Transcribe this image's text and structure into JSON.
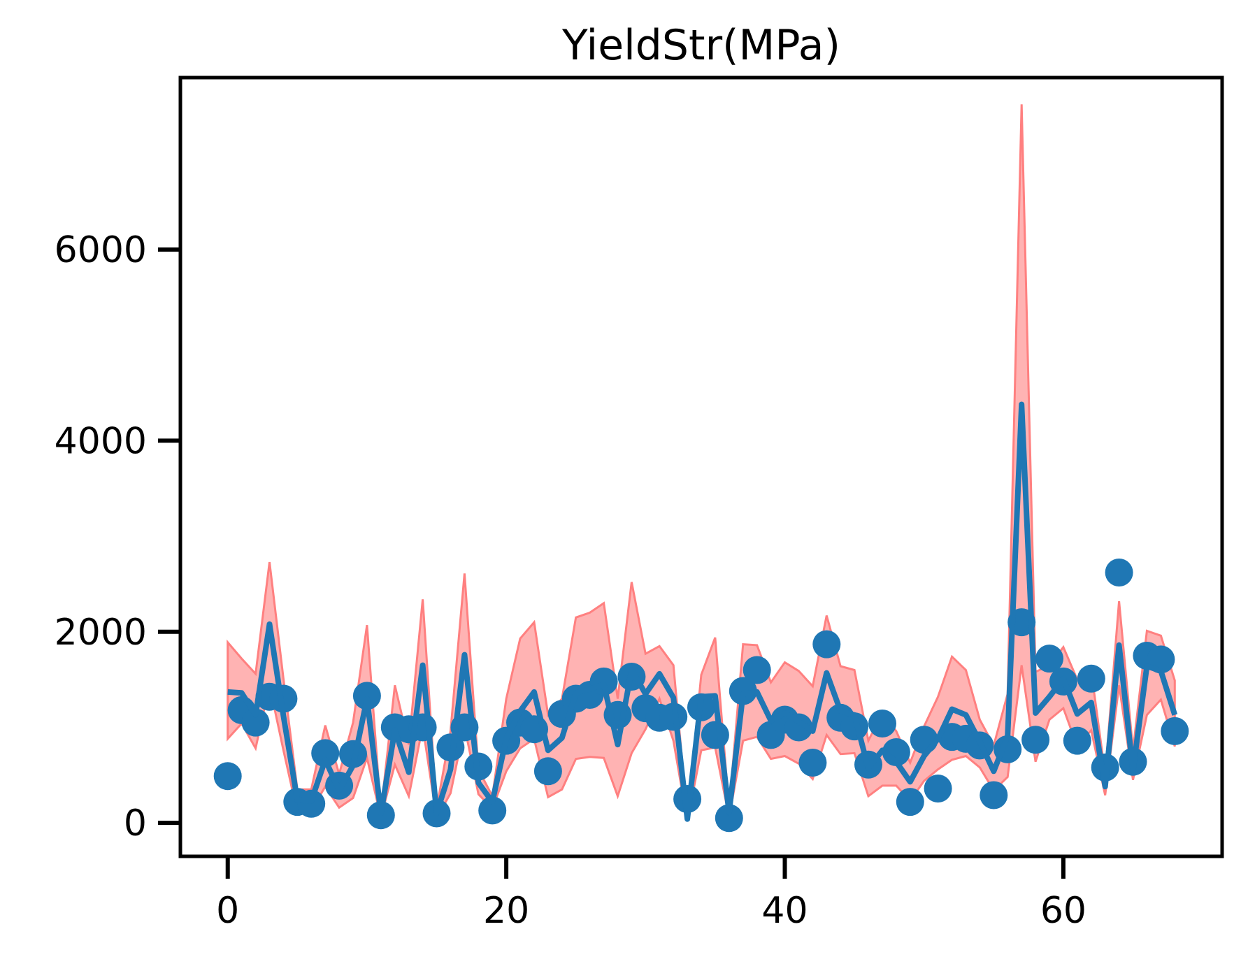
{
  "chart_data": {
    "type": "line",
    "title": "YieldStr(MPa)",
    "xlabel": "",
    "ylabel": "",
    "xlim": [
      -3.4,
      71.4
    ],
    "ylim": [
      -350,
      7800
    ],
    "x_ticks": [
      0,
      20,
      40,
      60
    ],
    "y_ticks": [
      0,
      2000,
      4000,
      6000
    ],
    "grid": false,
    "colors": {
      "points": "#1f77b4",
      "line": "#1f77b4",
      "band": "#ff8080"
    },
    "series": [
      {
        "kind": "scatter",
        "x": [
          0,
          1,
          2,
          3,
          4,
          5,
          6,
          7,
          8,
          9,
          10,
          11,
          12,
          13,
          14,
          15,
          16,
          17,
          18,
          19,
          20,
          21,
          22,
          23,
          24,
          25,
          26,
          27,
          28,
          29,
          30,
          31,
          32,
          33,
          34,
          35,
          36,
          37,
          38,
          39,
          40,
          41,
          42,
          43,
          44,
          45,
          46,
          47,
          48,
          49,
          50,
          51,
          52,
          53,
          54,
          55,
          56,
          57,
          58,
          59,
          60,
          61,
          62,
          63,
          64,
          65,
          66,
          67,
          68
        ],
        "values": [
          490,
          1180,
          1050,
          1320,
          1300,
          220,
          200,
          730,
          390,
          720,
          1330,
          80,
          1000,
          980,
          1000,
          100,
          790,
          1000,
          590,
          130,
          860,
          1050,
          980,
          540,
          1140,
          1300,
          1340,
          1480,
          1130,
          1530,
          1200,
          1100,
          1110,
          250,
          1210,
          920,
          50,
          1380,
          1600,
          920,
          1080,
          1000,
          630,
          1870,
          1100,
          1010,
          610,
          1040,
          740,
          220,
          870,
          360,
          900,
          880,
          810,
          290,
          770,
          2100,
          870,
          1720,
          1480,
          860,
          1510,
          580,
          2620,
          640,
          1750,
          1710,
          960
        ]
      },
      {
        "kind": "line",
        "x": [
          0,
          1,
          2,
          3,
          4,
          5,
          6,
          7,
          8,
          9,
          10,
          11,
          12,
          13,
          14,
          15,
          16,
          17,
          18,
          19,
          20,
          21,
          22,
          23,
          24,
          25,
          26,
          27,
          28,
          29,
          30,
          31,
          32,
          33,
          34,
          35,
          36,
          37,
          38,
          39,
          40,
          41,
          42,
          43,
          44,
          45,
          46,
          47,
          48,
          49,
          50,
          51,
          52,
          53,
          54,
          55,
          56,
          57,
          58,
          59,
          60,
          61,
          62,
          63,
          64,
          65,
          66,
          67,
          68
        ],
        "values": [
          1370,
          1360,
          1130,
          2080,
          1120,
          240,
          230,
          660,
          340,
          600,
          1300,
          100,
          970,
          530,
          1650,
          100,
          560,
          1760,
          420,
          220,
          880,
          1170,
          1370,
          760,
          890,
          1360,
          1400,
          1450,
          820,
          1600,
          1350,
          1560,
          1310,
          40,
          1320,
          1330,
          110,
          1350,
          1370,
          1070,
          1150,
          1060,
          960,
          1570,
          1170,
          1130,
          570,
          760,
          640,
          430,
          700,
          880,
          1190,
          1130,
          850,
          540,
          910,
          4380,
          1150,
          1320,
          1510,
          1140,
          1260,
          380,
          1860,
          550,
          1640,
          1590,
          1130
        ]
      },
      {
        "kind": "band",
        "x": [
          0,
          1,
          2,
          3,
          4,
          5,
          6,
          7,
          8,
          9,
          10,
          11,
          12,
          13,
          14,
          15,
          16,
          17,
          18,
          19,
          20,
          21,
          22,
          23,
          24,
          25,
          26,
          27,
          28,
          29,
          30,
          31,
          32,
          33,
          34,
          35,
          36,
          37,
          38,
          39,
          40,
          41,
          42,
          43,
          44,
          45,
          46,
          47,
          48,
          49,
          50,
          51,
          52,
          53,
          54,
          55,
          56,
          57,
          58,
          59,
          60,
          61,
          62,
          63,
          64,
          65,
          66,
          67,
          68
        ],
        "upper": [
          1890,
          1720,
          1560,
          2730,
          1510,
          350,
          350,
          1020,
          510,
          1050,
          2070,
          120,
          1440,
          820,
          2340,
          150,
          960,
          2610,
          560,
          280,
          1300,
          1930,
          2100,
          1130,
          1300,
          2150,
          2200,
          2300,
          1300,
          2520,
          1770,
          1850,
          1650,
          60,
          1550,
          1940,
          150,
          1870,
          1860,
          1470,
          1680,
          1590,
          1430,
          2170,
          1640,
          1600,
          860,
          1150,
          960,
          630,
          1010,
          1320,
          1740,
          1600,
          1080,
          810,
          1350,
          7520,
          1580,
          1650,
          1840,
          1500,
          1590,
          510,
          2320,
          760,
          2010,
          1960,
          1490
        ],
        "lower": [
          880,
          1040,
          780,
          1440,
          760,
          110,
          130,
          380,
          160,
          260,
          680,
          60,
          610,
          280,
          1010,
          50,
          310,
          1010,
          300,
          150,
          540,
          780,
          880,
          270,
          350,
          670,
          690,
          680,
          280,
          730,
          980,
          1300,
          860,
          20,
          760,
          790,
          60,
          860,
          900,
          670,
          700,
          620,
          460,
          920,
          720,
          730,
          280,
          390,
          390,
          230,
          440,
          560,
          660,
          700,
          580,
          340,
          480,
          1650,
          640,
          1080,
          1200,
          800,
          970,
          290,
          1440,
          450,
          1130,
          1290,
          800
        ]
      }
    ]
  }
}
